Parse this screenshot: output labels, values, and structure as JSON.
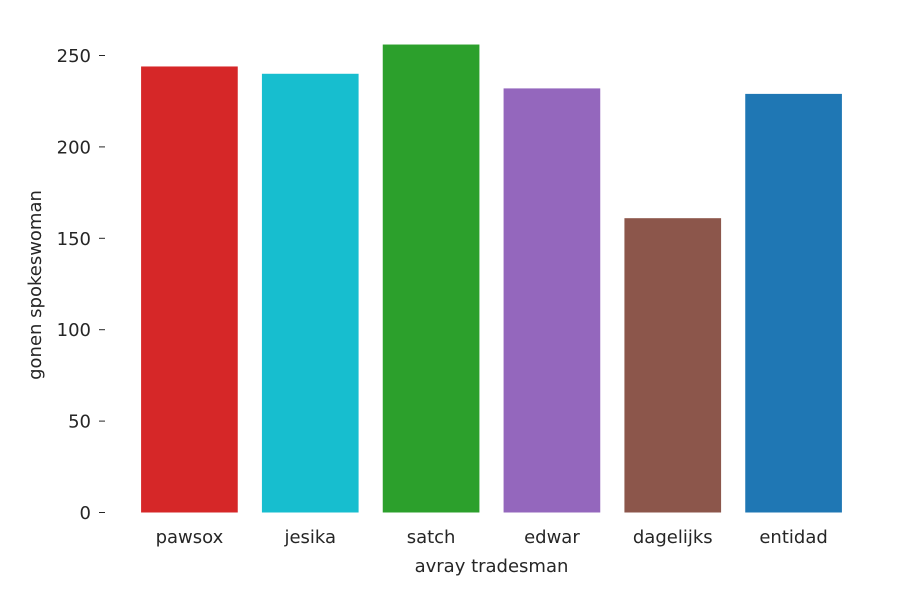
{
  "chart_data": {
    "type": "bar",
    "categories": [
      "pawsox",
      "jesika",
      "satch",
      "edwar",
      "dagelijks",
      "entidad"
    ],
    "values": [
      244,
      240,
      256,
      232,
      161,
      229
    ],
    "colors": [
      "#d62728",
      "#17becf",
      "#2ca02c",
      "#9467bd",
      "#8c564b",
      "#1f77b4"
    ],
    "xlabel": "avray tradesman",
    "ylabel": "gonen spokeswoman",
    "ylim": [
      0,
      270
    ],
    "yticks": [
      0,
      50,
      100,
      150,
      200,
      250
    ],
    "grid": false,
    "legend": "none"
  }
}
